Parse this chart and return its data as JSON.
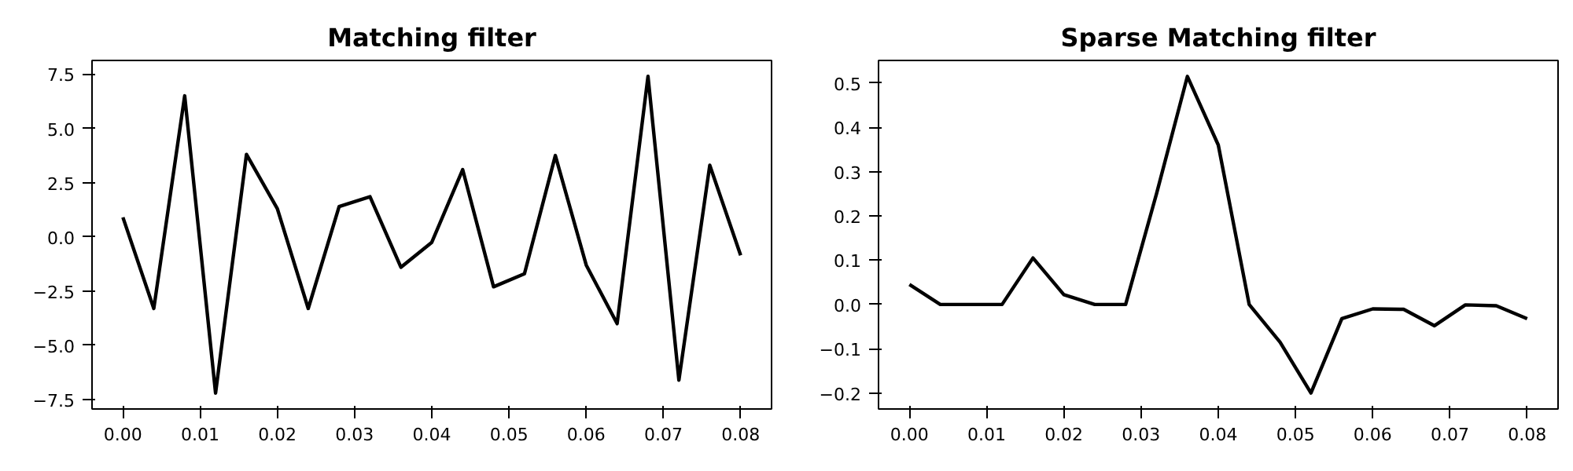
{
  "chart_data": [
    {
      "type": "line",
      "title": "Matching filter",
      "x": [
        0,
        0.004,
        0.008,
        0.012,
        0.016,
        0.02,
        0.024,
        0.028,
        0.032,
        0.036,
        0.04,
        0.044,
        0.048,
        0.052,
        0.056,
        0.06,
        0.064,
        0.068,
        0.072,
        0.076,
        0.08
      ],
      "series": [
        {
          "color": "#000000",
          "values": [
            0.9,
            -3.3,
            6.5,
            -7.2,
            3.8,
            1.3,
            -3.3,
            1.4,
            1.85,
            -1.4,
            -0.25,
            3.1,
            -2.3,
            -1.7,
            3.75,
            -1.3,
            -4.0,
            7.4,
            -6.6,
            3.3,
            -0.85
          ]
        }
      ],
      "xlim": [
        -0.004,
        0.084
      ],
      "xticks": [
        {
          "value": 0,
          "label": "0.00"
        },
        0.01,
        0.02,
        0.03,
        0.04,
        0.05,
        0.06,
        0.07,
        0.08
      ],
      "ylim": [
        -7.93,
        8.13
      ],
      "yticks": [
        {
          "value": -7.5,
          "label": "−7.5"
        },
        {
          "value": -5,
          "label": "−5.0"
        },
        {
          "value": -2.5,
          "label": "−2.5"
        },
        {
          "value": 0,
          "label": "0.0"
        },
        2.5,
        {
          "value": 5,
          "label": "5.0"
        },
        7.5
      ],
      "grid": false
    },
    {
      "type": "line",
      "title": "Sparse Matching filter",
      "x": [
        0,
        0.004,
        0.008,
        0.012,
        0.016,
        0.02,
        0.024,
        0.028,
        0.032,
        0.036,
        0.04,
        0.044,
        0.048,
        0.052,
        0.056,
        0.06,
        0.064,
        0.068,
        0.072,
        0.076,
        0.08
      ],
      "series": [
        {
          "color": "#000000",
          "values": [
            0.045,
            0,
            0,
            0,
            0.105,
            0.022,
            0,
            0,
            0.25,
            0.515,
            0.36,
            0,
            -0.085,
            -0.2,
            -0.032,
            -0.01,
            -0.011,
            -0.048,
            -0.001,
            -0.003,
            -0.032
          ]
        }
      ],
      "xlim": [
        -0.004,
        0.084
      ],
      "xticks": [
        {
          "value": 0,
          "label": "0.00"
        },
        0.01,
        0.02,
        0.03,
        0.04,
        0.05,
        0.06,
        0.07,
        0.08
      ],
      "ylim": [
        -0.236,
        0.551
      ],
      "yticks": [
        {
          "value": -0.2,
          "label": "−0.2"
        },
        {
          "value": -0.1,
          "label": "−0.1"
        },
        {
          "value": 0,
          "label": "0.0"
        },
        0.1,
        0.2,
        0.3,
        0.4,
        0.5
      ],
      "grid": false
    }
  ]
}
